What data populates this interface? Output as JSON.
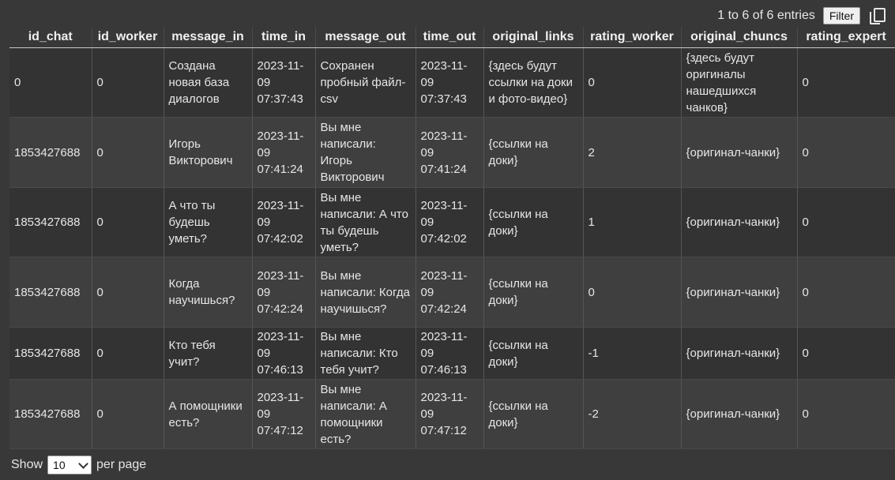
{
  "info": {
    "entries_text": "1 to 6 of 6 entries"
  },
  "toolbar": {
    "filter_label": "Filter"
  },
  "table": {
    "columns": [
      "id_chat",
      "id_worker",
      "message_in",
      "time_in",
      "message_out",
      "time_out",
      "original_links",
      "rating_worker",
      "original_chuncs",
      "rating_expert"
    ],
    "rows": [
      [
        "0",
        "0",
        "Создана новая база диалогов",
        "2023-11-09 07:37:43",
        "Сохранен пробный файл-csv",
        "2023-11-09 07:37:43",
        "{здесь будут ссылки на доки и фото-видео}",
        "0",
        "{здесь будут оригиналы нашедшихся чанков}",
        "0"
      ],
      [
        "1853427688",
        "0",
        "Игорь Викторович",
        "2023-11-09 07:41:24",
        "Вы мне написали: Игорь Викторович",
        "2023-11-09 07:41:24",
        "{ссылки на доки}",
        "2",
        "{оригинал-чанки}",
        "0"
      ],
      [
        "1853427688",
        "0",
        "А что ты будешь уметь?",
        "2023-11-09 07:42:02",
        "Вы мне написали: А что ты будешь уметь?",
        "2023-11-09 07:42:02",
        "{ссылки на доки}",
        "1",
        "{оригинал-чанки}",
        "0"
      ],
      [
        "1853427688",
        "0",
        "Когда научишься?",
        "2023-11-09 07:42:24",
        "Вы мне написали: Когда научишься?",
        "2023-11-09 07:42:24",
        "{ссылки на доки}",
        "0",
        "{оригинал-чанки}",
        "0"
      ],
      [
        "1853427688",
        "0",
        "Кто тебя учит?",
        "2023-11-09 07:46:13",
        "Вы мне написали: Кто тебя учит?",
        "2023-11-09 07:46:13",
        "{ссылки на доки}",
        "-1",
        "{оригинал-чанки}",
        "0"
      ],
      [
        "1853427688",
        "0",
        "А помощники есть?",
        "2023-11-09 07:47:12",
        "Вы мне написали: А помощники есть?",
        "2023-11-09 07:47:12",
        "{ссылки на доки}",
        "-2",
        "{оригинал-чанки}",
        "0"
      ]
    ]
  },
  "footer": {
    "show_label": "Show",
    "page_size": "10",
    "per_page_label": "per page"
  },
  "icons": {
    "copy": "copy-icon",
    "dropdown": "chevron-down-icon"
  }
}
